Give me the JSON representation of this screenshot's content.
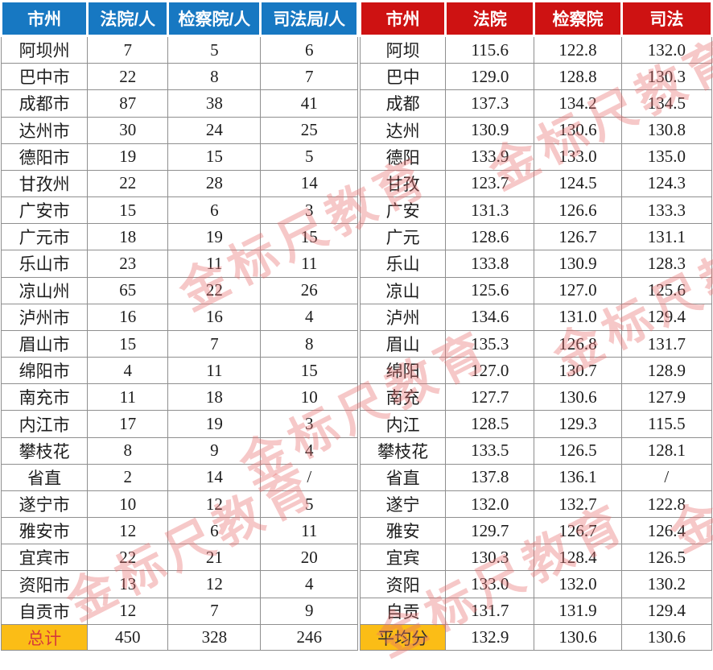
{
  "watermark": {
    "text": "金标尺教育"
  },
  "colors": {
    "left_header_bg": "#1778C2",
    "right_header_bg": "#CE1212",
    "footer_label_bg": "#FBBD16",
    "left_footer_text": "#D53A3A",
    "right_footer_text": "#2E2E2E",
    "border": "#8F8F8F"
  },
  "left_table": {
    "headers": [
      "市州",
      "法院/人",
      "检察院/人",
      "司法局/人"
    ],
    "rows": [
      [
        "阿坝州",
        "7",
        "5",
        "6"
      ],
      [
        "巴中市",
        "22",
        "8",
        "7"
      ],
      [
        "成都市",
        "87",
        "38",
        "41"
      ],
      [
        "达州市",
        "30",
        "24",
        "25"
      ],
      [
        "德阳市",
        "19",
        "15",
        "5"
      ],
      [
        "甘孜州",
        "22",
        "28",
        "14"
      ],
      [
        "广安市",
        "15",
        "6",
        "3"
      ],
      [
        "广元市",
        "18",
        "19",
        "15"
      ],
      [
        "乐山市",
        "23",
        "11",
        "11"
      ],
      [
        "凉山州",
        "65",
        "22",
        "26"
      ],
      [
        "泸州市",
        "16",
        "16",
        "4"
      ],
      [
        "眉山市",
        "15",
        "7",
        "8"
      ],
      [
        "绵阳市",
        "4",
        "11",
        "15"
      ],
      [
        "南充市",
        "11",
        "18",
        "10"
      ],
      [
        "内江市",
        "17",
        "19",
        "3"
      ],
      [
        "攀枝花",
        "8",
        "9",
        "4"
      ],
      [
        "省直",
        "2",
        "14",
        "/"
      ],
      [
        "遂宁市",
        "10",
        "12",
        "5"
      ],
      [
        "雅安市",
        "12",
        "6",
        "11"
      ],
      [
        "宜宾市",
        "22",
        "21",
        "20"
      ],
      [
        "资阳市",
        "13",
        "12",
        "4"
      ],
      [
        "自贡市",
        "12",
        "7",
        "9"
      ]
    ],
    "footer": [
      "总计",
      "450",
      "328",
      "246"
    ]
  },
  "right_table": {
    "headers": [
      "市州",
      "法院",
      "检察院",
      "司法"
    ],
    "rows": [
      [
        "阿坝",
        "115.6",
        "122.8",
        "132.0"
      ],
      [
        "巴中",
        "129.0",
        "128.8",
        "130.3"
      ],
      [
        "成都",
        "137.3",
        "134.2",
        "134.5"
      ],
      [
        "达州",
        "130.9",
        "130.6",
        "130.8"
      ],
      [
        "德阳",
        "133.9",
        "133.0",
        "135.0"
      ],
      [
        "甘孜",
        "123.7",
        "124.5",
        "124.3"
      ],
      [
        "广安",
        "131.3",
        "126.6",
        "133.3"
      ],
      [
        "广元",
        "128.6",
        "126.7",
        "131.1"
      ],
      [
        "乐山",
        "133.8",
        "130.9",
        "128.3"
      ],
      [
        "凉山",
        "125.6",
        "127.0",
        "125.6"
      ],
      [
        "泸州",
        "134.6",
        "131.0",
        "129.4"
      ],
      [
        "眉山",
        "135.3",
        "126.8",
        "131.7"
      ],
      [
        "绵阳",
        "127.0",
        "130.7",
        "128.9"
      ],
      [
        "南充",
        "127.7",
        "130.6",
        "127.9"
      ],
      [
        "内江",
        "128.5",
        "129.3",
        "115.5"
      ],
      [
        "攀枝花",
        "133.5",
        "126.5",
        "128.1"
      ],
      [
        "省直",
        "137.8",
        "136.1",
        "/"
      ],
      [
        "遂宁",
        "132.0",
        "132.7",
        "122.8"
      ],
      [
        "雅安",
        "129.7",
        "126.7",
        "126.4"
      ],
      [
        "宜宾",
        "130.3",
        "128.4",
        "126.5"
      ],
      [
        "资阳",
        "133.0",
        "132.0",
        "130.2"
      ],
      [
        "自贡",
        "131.7",
        "131.9",
        "129.4"
      ]
    ],
    "footer": [
      "平均分",
      "132.9",
      "130.6",
      "130.6"
    ]
  }
}
